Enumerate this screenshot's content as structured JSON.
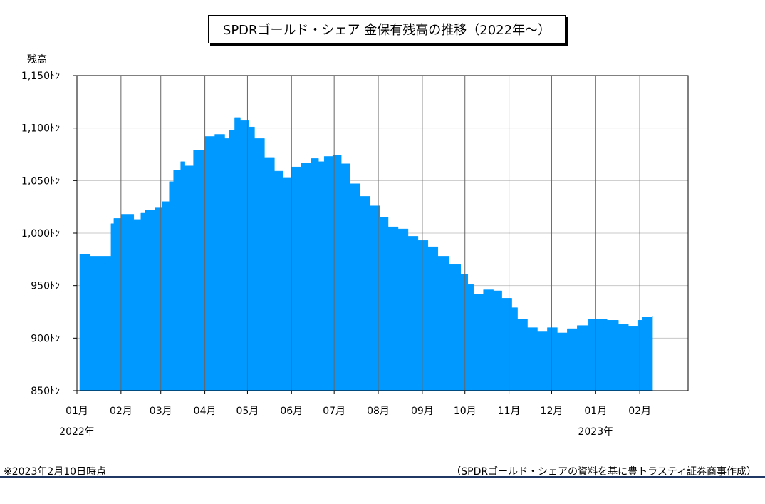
{
  "chart_data": {
    "type": "area",
    "title": "SPDRゴールド・シェア 金保有残高の推移（2022年～）",
    "ylabel": "残高",
    "ylim": [
      850,
      1150
    ],
    "yticks": [
      850,
      900,
      950,
      1000,
      1050,
      1100,
      1150
    ],
    "ytick_labels": [
      "850ﾄﾝ",
      "900ﾄﾝ",
      "950ﾄﾝ",
      "1,000ﾄﾝ",
      "1,050ﾄﾝ",
      "1,100ﾄﾝ",
      "1,150ﾄﾝ"
    ],
    "months": [
      "01月",
      "02月",
      "03月",
      "04月",
      "05月",
      "06月",
      "07月",
      "08月",
      "09月",
      "10月",
      "11月",
      "12月",
      "01月",
      "02月"
    ],
    "year_labels": [
      "2022年",
      "2023年"
    ],
    "grid": true,
    "color": "#0099ff",
    "series": [
      {
        "x": [
          "2022-01-03",
          "2022-01-06",
          "2022-01-10",
          "2022-01-20",
          "2022-01-25",
          "2022-01-27",
          "2022-02-01",
          "2022-02-10",
          "2022-02-15",
          "2022-02-18",
          "2022-02-25",
          "2022-03-02",
          "2022-03-07",
          "2022-03-10",
          "2022-03-15",
          "2022-03-18",
          "2022-03-24",
          "2022-04-01",
          "2022-04-08",
          "2022-04-15",
          "2022-04-18",
          "2022-04-22",
          "2022-04-26",
          "2022-05-02",
          "2022-05-06",
          "2022-05-13",
          "2022-05-20",
          "2022-05-26",
          "2022-06-01",
          "2022-06-08",
          "2022-06-15",
          "2022-06-20",
          "2022-06-24",
          "2022-06-30",
          "2022-07-06",
          "2022-07-12",
          "2022-07-19",
          "2022-07-26",
          "2022-08-02",
          "2022-08-08",
          "2022-08-15",
          "2022-08-22",
          "2022-08-29",
          "2022-09-05",
          "2022-09-12",
          "2022-09-20",
          "2022-09-28",
          "2022-10-03",
          "2022-10-07",
          "2022-10-14",
          "2022-10-21",
          "2022-10-27",
          "2022-11-03",
          "2022-11-07",
          "2022-11-14",
          "2022-11-21",
          "2022-11-28",
          "2022-12-05",
          "2022-12-12",
          "2022-12-19",
          "2022-12-27",
          "2023-01-03",
          "2023-01-09",
          "2023-01-17",
          "2023-01-24",
          "2023-01-31",
          "2023-02-03",
          "2023-02-10"
        ],
        "values": [
          980,
          980,
          978,
          978,
          1009,
          1014,
          1018,
          1013,
          1019,
          1022,
          1024,
          1030,
          1049,
          1060,
          1068,
          1064,
          1079,
          1092,
          1094,
          1090,
          1098,
          1110,
          1107,
          1101,
          1090,
          1072,
          1059,
          1053,
          1063,
          1067,
          1071,
          1068,
          1073,
          1074,
          1066,
          1047,
          1035,
          1026,
          1015,
          1006,
          1004,
          997,
          993,
          987,
          978,
          970,
          961,
          951,
          942,
          946,
          945,
          938,
          929,
          918,
          910,
          906,
          910,
          905,
          909,
          912,
          918,
          918,
          917,
          913,
          911,
          917,
          920,
          921
        ]
      }
    ]
  },
  "footer": {
    "note": "※2023年2月10日時点",
    "source": "（SPDRゴールド・シェアの資料を基に豊トラスティ証券商事作成）"
  }
}
